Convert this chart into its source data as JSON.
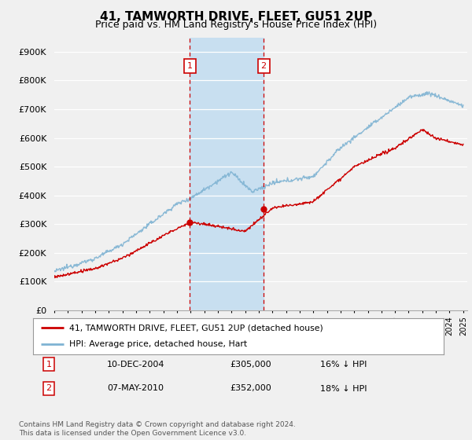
{
  "title": "41, TAMWORTH DRIVE, FLEET, GU51 2UP",
  "subtitle": "Price paid vs. HM Land Registry's House Price Index (HPI)",
  "ylabel_ticks": [
    "£0",
    "£100K",
    "£200K",
    "£300K",
    "£400K",
    "£500K",
    "£600K",
    "£700K",
    "£800K",
    "£900K"
  ],
  "ytick_vals": [
    0,
    100000,
    200000,
    300000,
    400000,
    500000,
    600000,
    700000,
    800000,
    900000
  ],
  "ylim": [
    0,
    950000
  ],
  "xlim_left": 1995,
  "xlim_right": 2025.3,
  "sale1_date": 2004.94,
  "sale1_price": 305000,
  "sale2_date": 2010.36,
  "sale2_price": 352000,
  "legend_red": "41, TAMWORTH DRIVE, FLEET, GU51 2UP (detached house)",
  "legend_blue": "HPI: Average price, detached house, Hart",
  "table_row1": [
    "1",
    "10-DEC-2004",
    "£305,000",
    "16% ↓ HPI"
  ],
  "table_row2": [
    "2",
    "07-MAY-2010",
    "£352,000",
    "18% ↓ HPI"
  ],
  "footnote": "Contains HM Land Registry data © Crown copyright and database right 2024.\nThis data is licensed under the Open Government Licence v3.0.",
  "bg_color": "#f0f0f0",
  "plot_bg_color": "#f0f0f0",
  "grid_color": "#ffffff",
  "red_color": "#cc0000",
  "blue_color": "#7fb3d3",
  "shade_color": "#c8dff0",
  "vline_color": "#cc0000",
  "title_fontsize": 11,
  "subtitle_fontsize": 9
}
